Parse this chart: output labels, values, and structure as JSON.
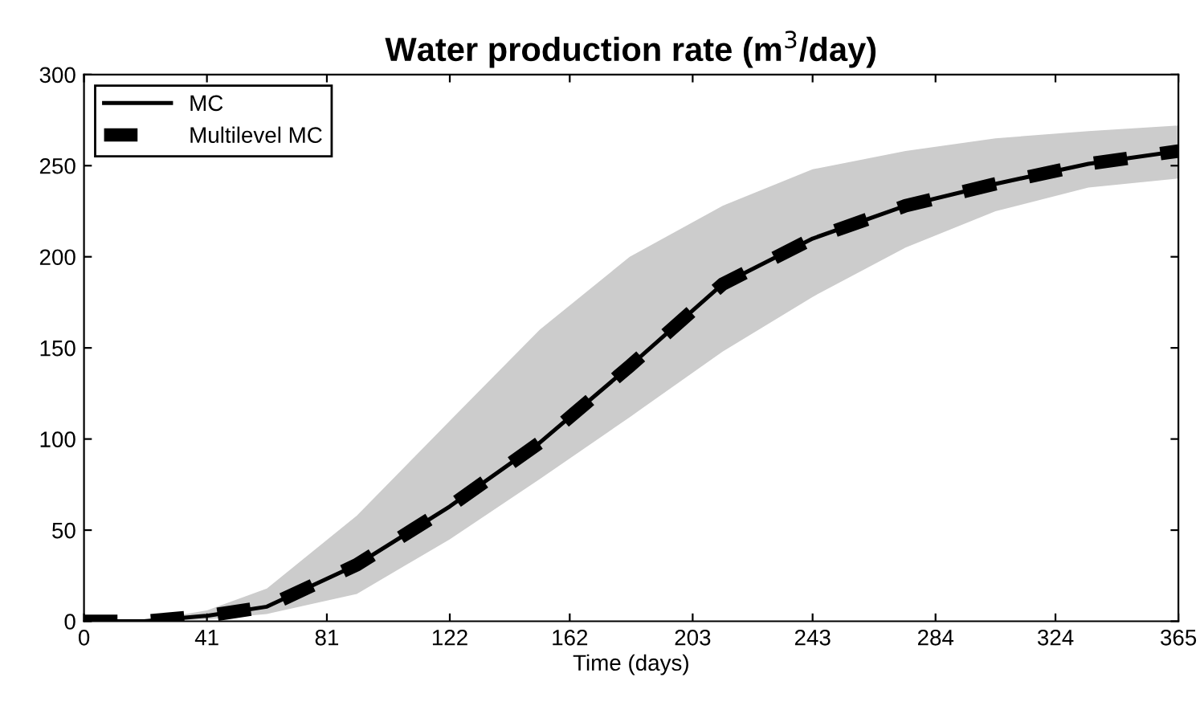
{
  "chart_data": {
    "type": "line",
    "title": "Water production rate (m$^{3}$/day)",
    "xlabel": "Time (days)",
    "x": [
      0,
      20,
      41,
      61,
      91,
      122,
      152,
      182,
      213,
      243,
      274,
      304,
      335,
      365
    ],
    "series": [
      {
        "name": "MC",
        "color": "#000000",
        "line_style": "solid",
        "values": [
          0,
          0,
          3,
          8,
          31,
          63,
          98,
          140,
          185,
          210,
          228,
          240,
          251,
          258
        ],
        "lower": [
          0,
          0,
          1,
          4,
          15,
          45,
          78,
          112,
          148,
          178,
          205,
          225,
          238,
          243
        ],
        "upper": [
          0,
          0,
          6,
          18,
          58,
          110,
          160,
          200,
          228,
          248,
          258,
          265,
          269,
          272
        ]
      },
      {
        "name": "Multilevel MC",
        "color": "#000000",
        "line_style": "dashed",
        "values": [
          0,
          0,
          3,
          8,
          31,
          63,
          98,
          140,
          185,
          210,
          228,
          240,
          251,
          258
        ]
      }
    ],
    "xlim": [
      0,
      365
    ],
    "ylim": [
      0,
      300
    ],
    "xticks": [
      0,
      41,
      81,
      122,
      162,
      203,
      243,
      284,
      324,
      365
    ],
    "yticks": [
      0,
      50,
      100,
      150,
      200,
      250,
      300
    ],
    "grid": false,
    "legend": "top left",
    "marker": "none"
  }
}
